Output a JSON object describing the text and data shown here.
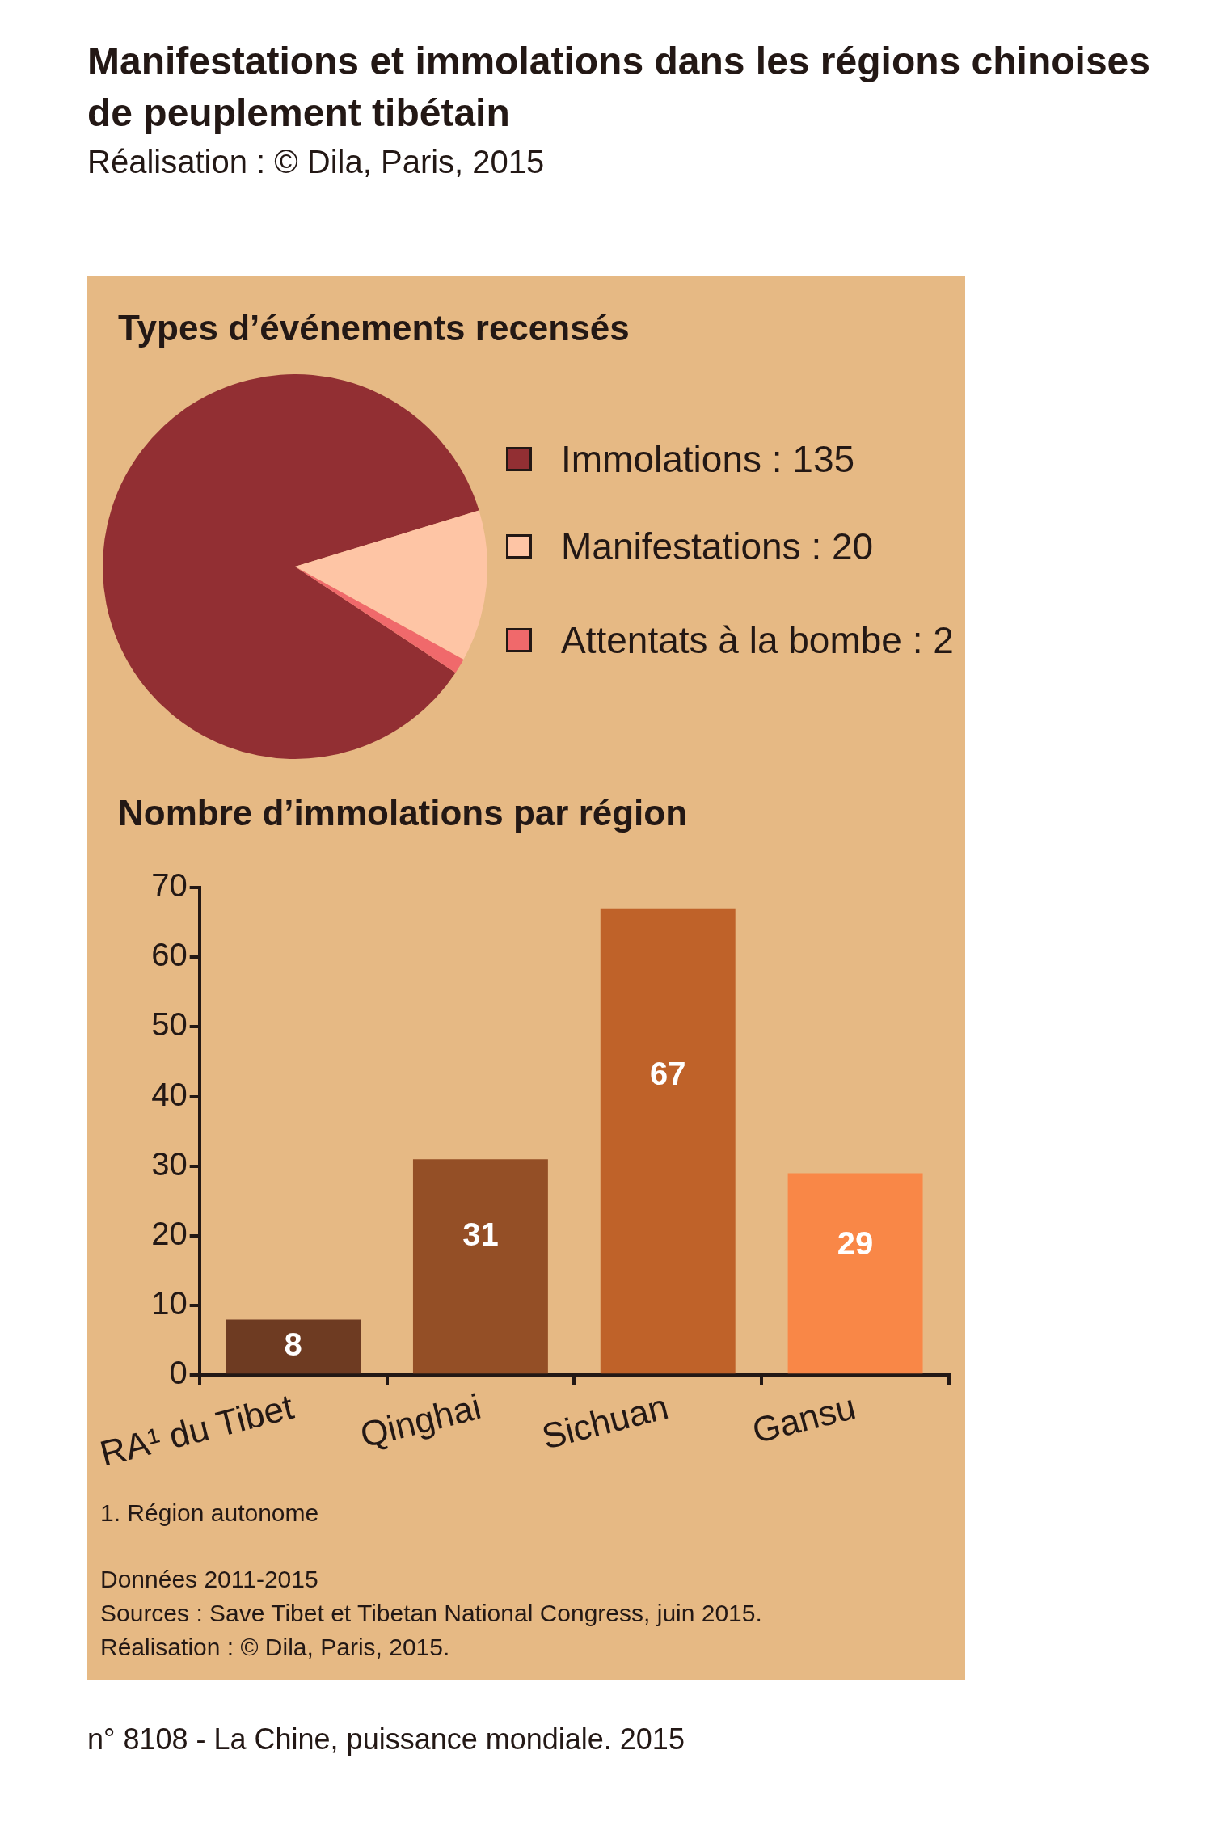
{
  "chart_data": [
    {
      "type": "other",
      "title": "Manifestations et immolations dans les régions chinoises de peuplement tibétain",
      "subtitle": "Réalisation : © Dila, Paris, 2015"
    },
    {
      "type": "pie",
      "title": "Types d’événements recensés",
      "categories": [
        "Immolations : 135",
        "Manifestations : 20",
        "Attentats à la bombe : 2"
      ],
      "values": [
        135,
        20,
        2
      ],
      "colors": [
        "#922f33",
        "#fec5a5",
        "#f0696b"
      ],
      "legend": "right"
    },
    {
      "type": "bar",
      "title": "Nombre d’immolations par région",
      "categories": [
        "RA¹ du Tibet",
        "Qinghai",
        "Sichuan",
        "Gansu"
      ],
      "values": [
        8,
        31,
        67,
        29
      ],
      "colors": [
        "#6e3b22",
        "#944f26",
        "#bf6229",
        "#f98747"
      ],
      "ylim": [
        0,
        70
      ],
      "yticks": [
        0,
        10,
        20,
        30,
        40,
        50,
        60,
        70
      ],
      "grid": false,
      "data_labels": true,
      "annotations": [
        "1. Région autonome",
        "Données 2011-2015",
        "Sources : Save Tibet et Tibetan National Congress, juin 2015.",
        "Réalisation : © Dila, Paris, 2015."
      ]
    },
    {
      "type": "other",
      "annotations": [
        "n° 8108 - La Chine, puissance mondiale. 2015"
      ]
    }
  ]
}
